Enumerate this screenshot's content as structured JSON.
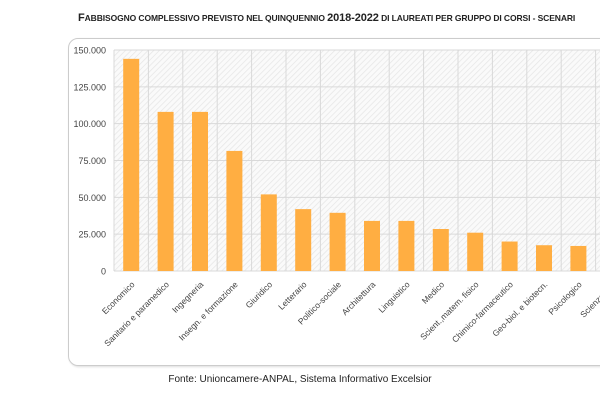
{
  "chart_data": {
    "type": "bar",
    "title_parts": [
      "F",
      "ABBISOGNO COMPLESSIVO PREVISTO NEL QUINQUENNIO ",
      "2018-2022",
      " DI LAUREATI PER GRUPPO DI CORSI - SCENARI"
    ],
    "categories": [
      "Economico",
      "Sanitario e paramedico",
      "Ingegneria",
      "Insegn. e formazione",
      "Giuridico",
      "Letterario",
      "Politico-sociale",
      "Architettura",
      "Linguistico",
      "Medico",
      "Scient.,matem. fisico",
      "Chimico-farmaceutico",
      "Geo-biol. e biotecn.",
      "Psicologico",
      "Scienze mot"
    ],
    "values": [
      144000,
      108000,
      108000,
      81500,
      52000,
      42000,
      39500,
      34000,
      34000,
      28500,
      26000,
      20000,
      17500,
      17000,
      null
    ],
    "yticks": [
      "0",
      "25.000",
      "50.000",
      "75.000",
      "100.000",
      "125.000",
      "150.000"
    ],
    "ylim": [
      0,
      150000
    ],
    "grid": true,
    "colors": {
      "bar": "#FFAE42",
      "grid": "#d9d9d9"
    }
  },
  "source": "Fonte: Unioncamere-ANPAL, Sistema Informativo Excelsior"
}
